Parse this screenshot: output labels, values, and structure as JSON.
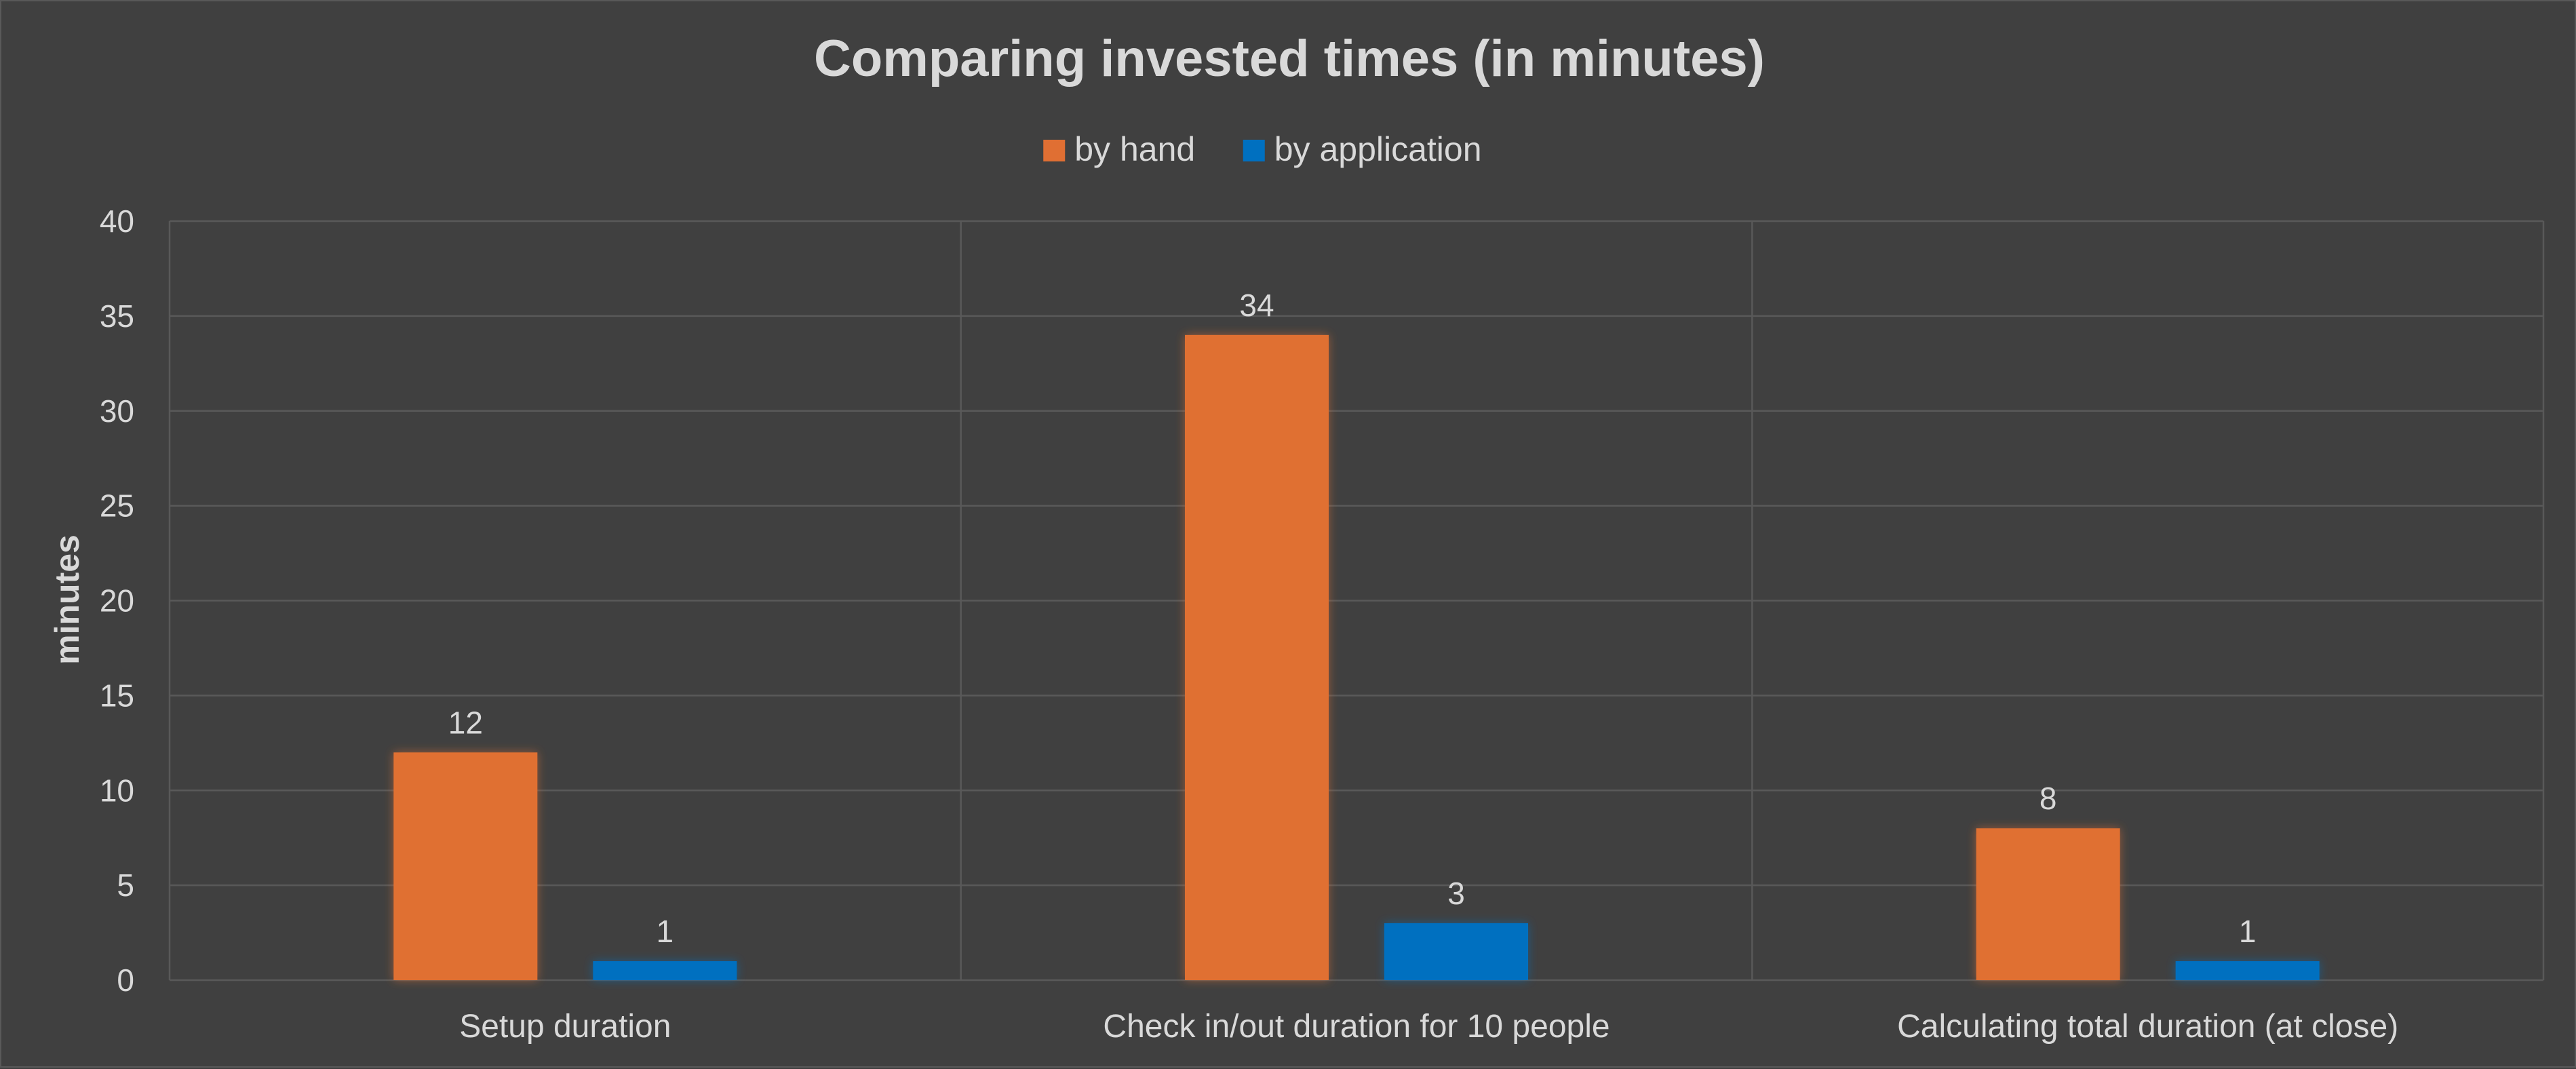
{
  "chart_data": {
    "type": "bar",
    "title": "Comparing invested times (in minutes)",
    "xlabel": "",
    "ylabel": "minutes",
    "categories": [
      "Setup duration",
      "Check in/out duration for 10 people",
      "Calculating total duration (at close)"
    ],
    "series": [
      {
        "name": "by hand",
        "values": [
          12,
          34,
          8
        ],
        "color": "#E06F33"
      },
      {
        "name": "by application",
        "values": [
          1,
          3,
          1
        ],
        "color": "#0070C0"
      }
    ],
    "ylim": [
      0,
      40
    ],
    "yticks": [
      0,
      5,
      10,
      15,
      20,
      25,
      30,
      35,
      40
    ],
    "grid": true,
    "legend": "top",
    "background": "#404040",
    "text_color": "#D9D9D9",
    "grid_color": "#595959"
  }
}
